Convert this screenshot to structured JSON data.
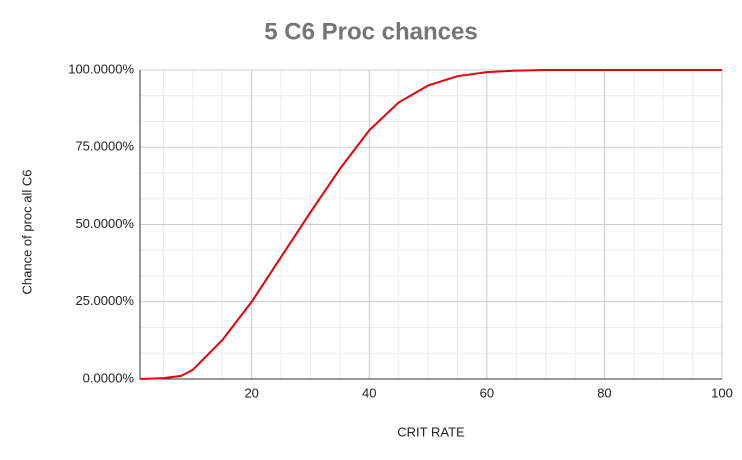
{
  "chart_data": {
    "type": "line",
    "title": "5 C6 Proc chances",
    "x_label": "CRIT RATE",
    "y_label": "Chance of proc all C6",
    "x": [
      1,
      5,
      8,
      10,
      15,
      20,
      25,
      30,
      35,
      40,
      45,
      50,
      55,
      60,
      65,
      70,
      80,
      90,
      100
    ],
    "series": [
      {
        "name": "Chance of proc all C6",
        "color": "#e8000b",
        "values": [
          0,
          0.3,
          1,
          3,
          12.6,
          25,
          39.5,
          54,
          68,
          80.5,
          89.5,
          95,
          98,
          99.3,
          99.8,
          100,
          100,
          100,
          100
        ]
      }
    ],
    "xlim": [
      1,
      100
    ],
    "xticks": [
      20,
      40,
      60,
      80,
      100
    ],
    "ylim": [
      0,
      100
    ],
    "yticks": [
      {
        "value": 0,
        "label": "0.0000%"
      },
      {
        "value": 25,
        "label": "25.0000%"
      },
      {
        "value": 50,
        "label": "50.0000%"
      },
      {
        "value": 75,
        "label": "75.0000%"
      },
      {
        "value": 100,
        "label": "100.0000%"
      }
    ],
    "grid": true
  }
}
